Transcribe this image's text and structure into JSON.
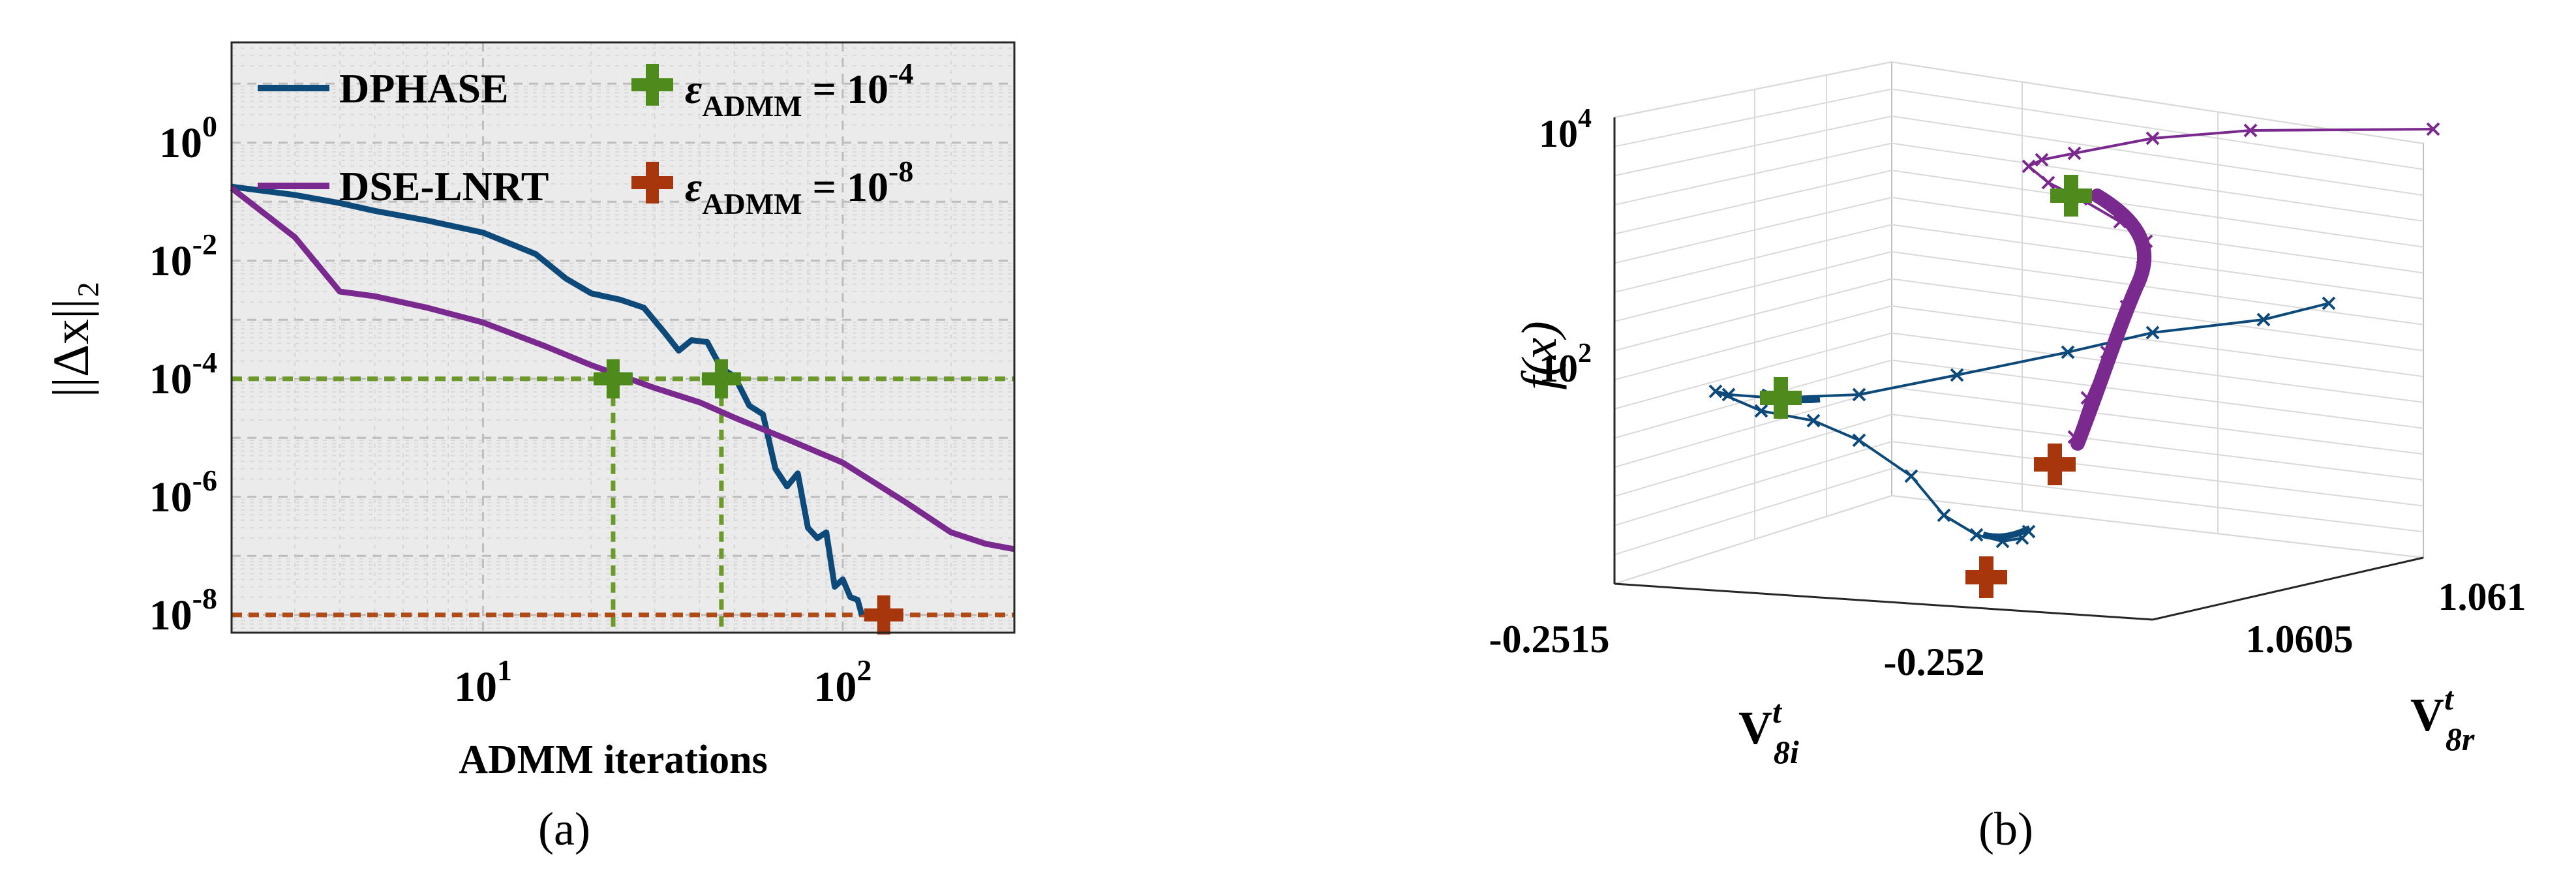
{
  "colors": {
    "dphase": "#0d4a7a",
    "dse_lnrt": "#7a2a8e",
    "eps_green": "#4e8a1c",
    "eps_red": "#a8360c",
    "eps_green_dash": "#6b9a2a",
    "eps_red_dash": "#b24a16",
    "grid": "#cfcfcf",
    "axis": "#262626",
    "bg": "#ebebeb"
  },
  "panel_a": {
    "caption": "(a)",
    "chart_data": {
      "type": "line",
      "xscale": "log",
      "yscale": "log",
      "xlabel": "ADMM iterations",
      "ylabel": "||Δx||₂",
      "xlim": [
        2,
        300
      ],
      "ylim": [
        5e-09,
        50
      ],
      "xtick_labels": [
        {
          "value": 10,
          "base": "10",
          "exp": "1"
        },
        {
          "value": 100,
          "base": "10",
          "exp": "2"
        }
      ],
      "ytick_labels": [
        {
          "value": 1,
          "base": "10",
          "exp": "0"
        },
        {
          "value": 0.01,
          "base": "10",
          "exp": "-2"
        },
        {
          "value": 0.0001,
          "base": "10",
          "exp": "-4"
        },
        {
          "value": 1e-06,
          "base": "10",
          "exp": "-6"
        },
        {
          "value": 1e-08,
          "base": "10",
          "exp": "-8"
        }
      ],
      "grid": true,
      "legend_position": "top",
      "series": [
        {
          "name": "DPHASE",
          "color_key": "dphase",
          "x": [
            2,
            3,
            4,
            5,
            7,
            10,
            14,
            17,
            20,
            24,
            28,
            32,
            35,
            38,
            42,
            46,
            50,
            55,
            60,
            65,
            70,
            75,
            80,
            85,
            90,
            95,
            100,
            105,
            110,
            113
          ],
          "y": [
            0.18,
            0.13,
            0.095,
            0.07,
            0.048,
            0.03,
            0.013,
            0.005,
            0.0028,
            0.0022,
            0.0016,
            0.0006,
            0.0003,
            0.00045,
            0.00042,
            0.00015,
            0.00011,
            3.5e-05,
            2.5e-05,
            3e-06,
            1.5e-06,
            2.5e-06,
            3e-07,
            2e-07,
            2.5e-07,
            3e-08,
            4e-08,
            2e-08,
            1.8e-08,
            1e-08
          ]
        },
        {
          "name": "DSE-LNRT",
          "color_key": "dse_lnrt",
          "x": [
            2,
            3,
            4,
            5,
            7,
            10,
            15,
            20,
            30,
            40,
            50,
            70,
            100,
            150,
            200,
            250,
            300
          ],
          "y": [
            0.17,
            0.025,
            0.003,
            0.0025,
            0.0016,
            0.0009,
            0.00035,
            0.00017,
            7e-05,
            4e-05,
            2.2e-05,
            9.5e-06,
            3.8e-06,
            8e-07,
            2.5e-07,
            1.6e-07,
            1.3e-07
          ]
        }
      ],
      "thresholds": [
        {
          "name_prefix": "ε",
          "name_sub": "ADMM",
          "eq": " = ",
          "base": "10",
          "exp": "-4",
          "y": 0.0001,
          "color_key": "eps_green",
          "dash_color_key": "eps_green_dash",
          "x_points": [
            23,
            46
          ]
        },
        {
          "name_prefix": "ε",
          "name_sub": "ADMM",
          "eq": " = ",
          "base": "10",
          "exp": "-8",
          "y": 1e-08,
          "color_key": "eps_red",
          "dash_color_key": "eps_red_dash",
          "x_points": [
            130
          ]
        }
      ]
    }
  },
  "panel_b": {
    "caption": "(b)",
    "chart_data": {
      "type": "line",
      "projection": "3d",
      "zscale": "log",
      "zlabel": "f(x)",
      "xlabel": {
        "base": "V",
        "sub": "8i",
        "sup": "t"
      },
      "ylabel": {
        "base": "V",
        "sub": "8r",
        "sup": "t"
      },
      "xtick_labels": [
        "-0.2515",
        "-0.252"
      ],
      "ytick_labels": [
        "1.0605",
        "1.061"
      ],
      "ztick_labels": [
        {
          "base": "10",
          "exp": "4"
        },
        {
          "base": "10",
          "exp": "2"
        }
      ],
      "series": [
        {
          "name": "DPHASE",
          "color_key": "dphase",
          "marker": "x"
        },
        {
          "name": "DSE-LNRT",
          "color_key": "dse_lnrt",
          "marker": "x"
        }
      ],
      "markers": [
        {
          "color_key": "eps_green",
          "on_series": "DPHASE"
        },
        {
          "color_key": "eps_green",
          "on_series": "DSE-LNRT"
        },
        {
          "color_key": "eps_red",
          "on_series": "DPHASE"
        },
        {
          "color_key": "eps_red",
          "on_series": "DSE-LNRT"
        }
      ]
    }
  }
}
